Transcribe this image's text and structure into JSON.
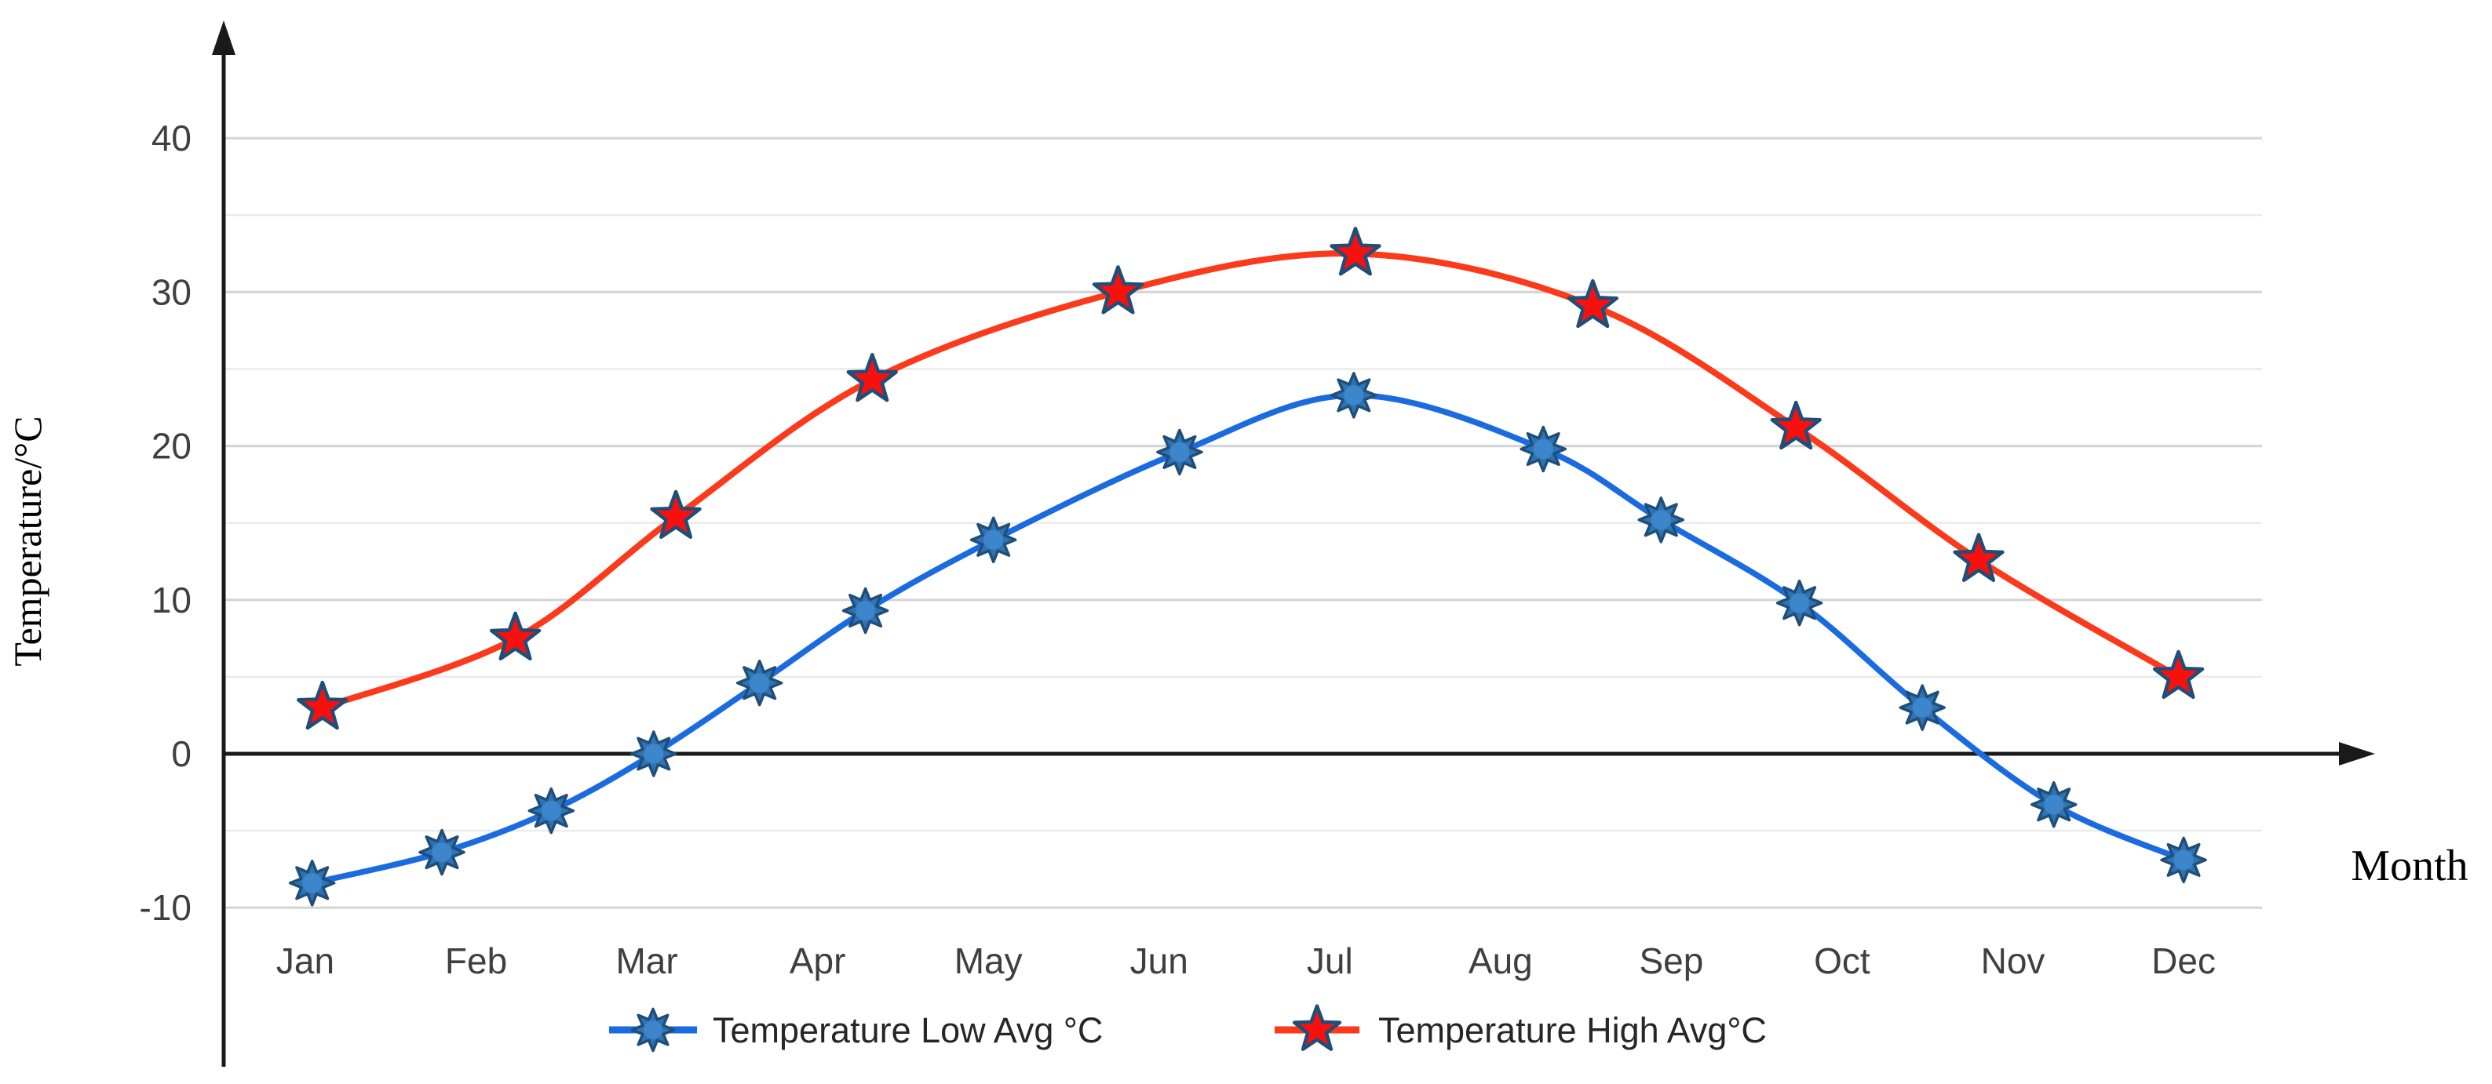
{
  "chart": {
    "y_axis": {
      "title": "Temperature/°C",
      "major_ticks": [
        40,
        30,
        20,
        10,
        -10
      ],
      "zero_tick": "0",
      "minor_ticks": [
        35,
        25,
        15,
        5,
        -5
      ]
    },
    "x_axis": {
      "title": "Month",
      "categories": [
        "Jan",
        "Feb",
        "Mar",
        "Apr",
        "May",
        "Jun",
        "Jul",
        "Aug",
        "Sep",
        "Oct",
        "Nov",
        "Dec"
      ]
    },
    "legend": [
      {
        "label": "Temperature Low Avg °C",
        "marker": "sunburst-icon"
      },
      {
        "label": "Temperature High Avg°C",
        "marker": "star-icon"
      }
    ]
  },
  "chart_data": {
    "type": "line",
    "title": "",
    "xlabel": "Month",
    "ylabel": "Temperature/°C",
    "ylim": [
      -10,
      40
    ],
    "grid": "horizontal, every 5°C, light gray; bold black zero axis",
    "legend_position": "bottom-center",
    "categories": [
      "Jan",
      "Feb",
      "Mar",
      "Apr",
      "May",
      "Jun",
      "Jul",
      "Aug",
      "Sep",
      "Oct",
      "Nov",
      "Dec"
    ],
    "series": [
      {
        "name": "Temperature Low Avg °C",
        "marker": "sunburst",
        "month_x": [
          1.04,
          1.8,
          2.44,
          3.04,
          3.66,
          4.28,
          5.03,
          6.12,
          7.14,
          8.25,
          8.94,
          9.75,
          10.47,
          11.24,
          12.0
        ],
        "values": [
          -8.4,
          -6.4,
          -3.7,
          0.0,
          4.6,
          9.3,
          13.9,
          19.6,
          23.3,
          19.8,
          15.2,
          9.8,
          3.0,
          -3.3,
          -6.9
        ]
      },
      {
        "name": "Temperature High Avg°C",
        "marker": "star",
        "month_x": [
          1.1,
          2.23,
          3.17,
          4.32,
          5.76,
          7.15,
          8.54,
          9.73,
          10.8,
          11.97
        ],
        "values": [
          3.0,
          7.5,
          15.4,
          24.3,
          30.0,
          32.5,
          29.1,
          21.2,
          12.6,
          5.0
        ]
      }
    ]
  },
  "colors": {
    "low_line": "#1b6be0",
    "low_marker_fill": "#2e74b5",
    "low_marker_core": "#3e86cc",
    "high_line": "#fb3a1c",
    "high_marker_fill": "#f8100f",
    "marker_outline": "#1f4e79",
    "grid_major": "#d5d5d5",
    "grid_minor": "#eaeaea",
    "axis": "#1a1a1a",
    "tick_text": "#3f3f3f",
    "legend_text": "#262626",
    "label_text": "#000000"
  }
}
